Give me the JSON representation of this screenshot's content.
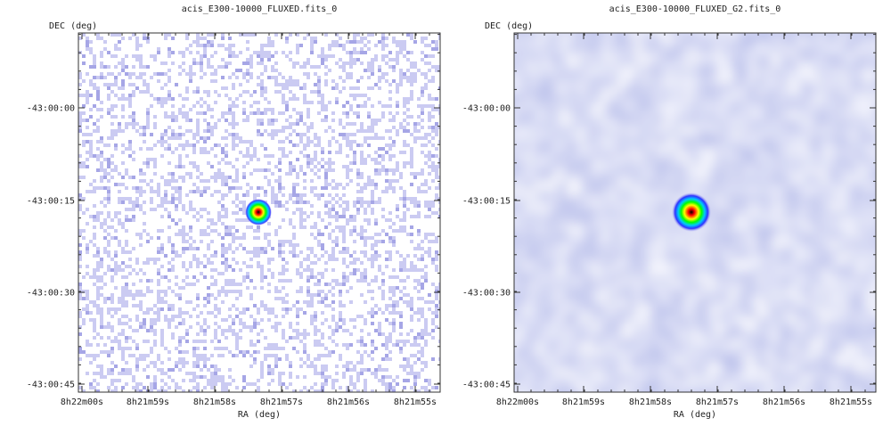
{
  "chart_data": [
    {
      "type": "heatmap",
      "title": "acis_E300-10000_FLUXED.fits_0",
      "xlabel": "RA (deg)",
      "ylabel": "DEC (deg)",
      "x_ticks": [
        "8h22m00s",
        "8h21m59s",
        "8h21m58s",
        "8h21m57s",
        "8h21m56s",
        "8h21m55s"
      ],
      "y_ticks": [
        "-43:00:00",
        "-43:00:15",
        "-43:00:30",
        "-43:00:45"
      ],
      "image_style": "raw counts: sparse speckled background with compact point source",
      "source": {
        "ra": "8h21m57.5s",
        "dec": "-43:00:17",
        "peak_color": "#000000"
      },
      "colormap": [
        "#ffffff",
        "#c8c8f0",
        "#0000ff",
        "#00c8ff",
        "#00ff00",
        "#ffff00",
        "#ff0000",
        "#000000"
      ]
    },
    {
      "type": "heatmap",
      "title": "acis_E300-10000_FLUXED_G2.fits_0",
      "xlabel": "RA (deg)",
      "ylabel": "DEC (deg)",
      "x_ticks": [
        "8h22m00s",
        "8h21m59s",
        "8h21m58s",
        "8h21m57s",
        "8h21m56s",
        "8h21m55s"
      ],
      "y_ticks": [
        "-43:00:00",
        "-43:00:15",
        "-43:00:30",
        "-43:00:45"
      ],
      "image_style": "gaussian smoothed (G2): continuous pale-blue background with broadened point source",
      "source": {
        "ra": "8h21m57.5s",
        "dec": "-43:00:17",
        "peak_color": "#000000"
      },
      "colormap": [
        "#ffffff",
        "#c8c8f0",
        "#0000ff",
        "#00c8ff",
        "#00ff00",
        "#ffff00",
        "#ff0000",
        "#000000"
      ]
    }
  ]
}
